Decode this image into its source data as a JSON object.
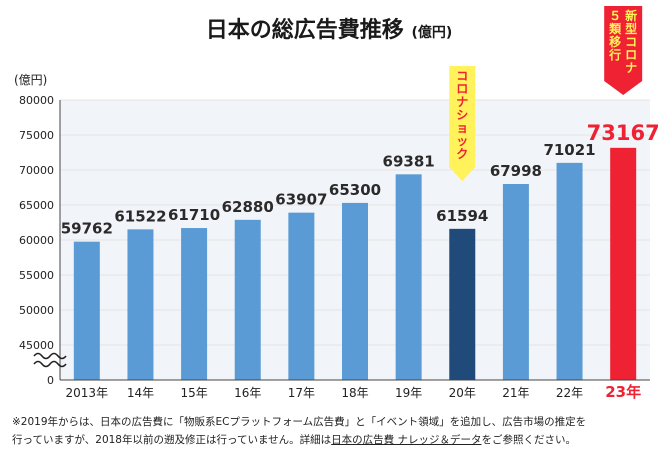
{
  "chart_data": {
    "type": "bar",
    "title": "日本の総広告費推移",
    "title_unit": "(億円)",
    "ylabel": "(億円)",
    "ylim": [
      40000,
      80000
    ],
    "y_ticks": [
      "0",
      "45000",
      "50000",
      "55000",
      "60000",
      "65000",
      "70000",
      "75000",
      "80000"
    ],
    "axis_break": true,
    "grid": "horizontal",
    "categories": [
      "2013年",
      "14年",
      "15年",
      "16年",
      "17年",
      "18年",
      "19年",
      "20年",
      "21年",
      "22年",
      "23年"
    ],
    "values": [
      59762,
      61522,
      61710,
      62880,
      63907,
      65300,
      69381,
      61594,
      67998,
      71021,
      73167
    ],
    "value_labels": [
      "59762",
      "61522",
      "61710",
      "62880",
      "63907",
      "65300",
      "69381",
      "61594",
      "67998",
      "71021",
      "73167"
    ],
    "colors": {
      "default": "#5b9bd5",
      "highlight_2020": "#1f4a7a",
      "highlight_2023": "#ee2233",
      "callout": "#fff25a",
      "grid": "#e4e4e4",
      "plot_bg": "#f1f4f8"
    },
    "annotations": [
      {
        "category": "20年",
        "text": "コロナショック",
        "color": "#ee2233",
        "background": "#fff25a"
      },
      {
        "category": "23年",
        "text": "新型コロナ５類移行",
        "color": "#fff25a",
        "background": "#ee2233"
      }
    ]
  },
  "footnote": {
    "line1": "※2019年からは、日本の広告費に「物販系ECプラットフォーム広告費」と「イベント領域」を追加し、広告市場の推定を",
    "line2_before": "行っていますが、2018年以前の遡及修正は行っていません。詳細は",
    "line2_link": "日本の広告費 ナレッジ＆データ",
    "line2_after": "をご参照ください。"
  }
}
